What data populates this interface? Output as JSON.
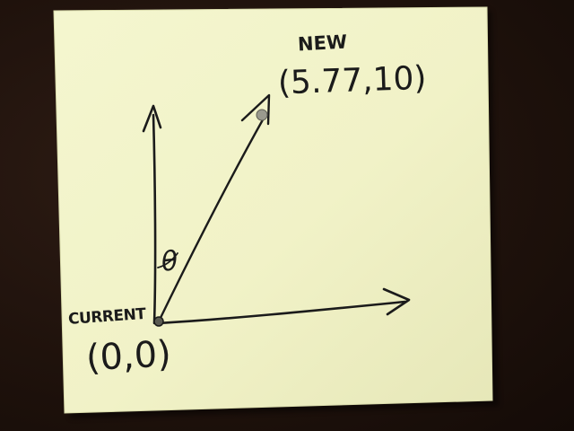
{
  "photo": {
    "subject": "handwritten vector sketch on a sticky note",
    "colors": {
      "background": "#1f120c",
      "paper": "#f2f3c9",
      "ink": "#1b1b1b"
    }
  },
  "sketch": {
    "angle_symbol": "θ",
    "current_label": "CURRENT",
    "current_coords": "(0,0)",
    "new_label": "NEW",
    "new_coords": "(5.77,10)"
  }
}
